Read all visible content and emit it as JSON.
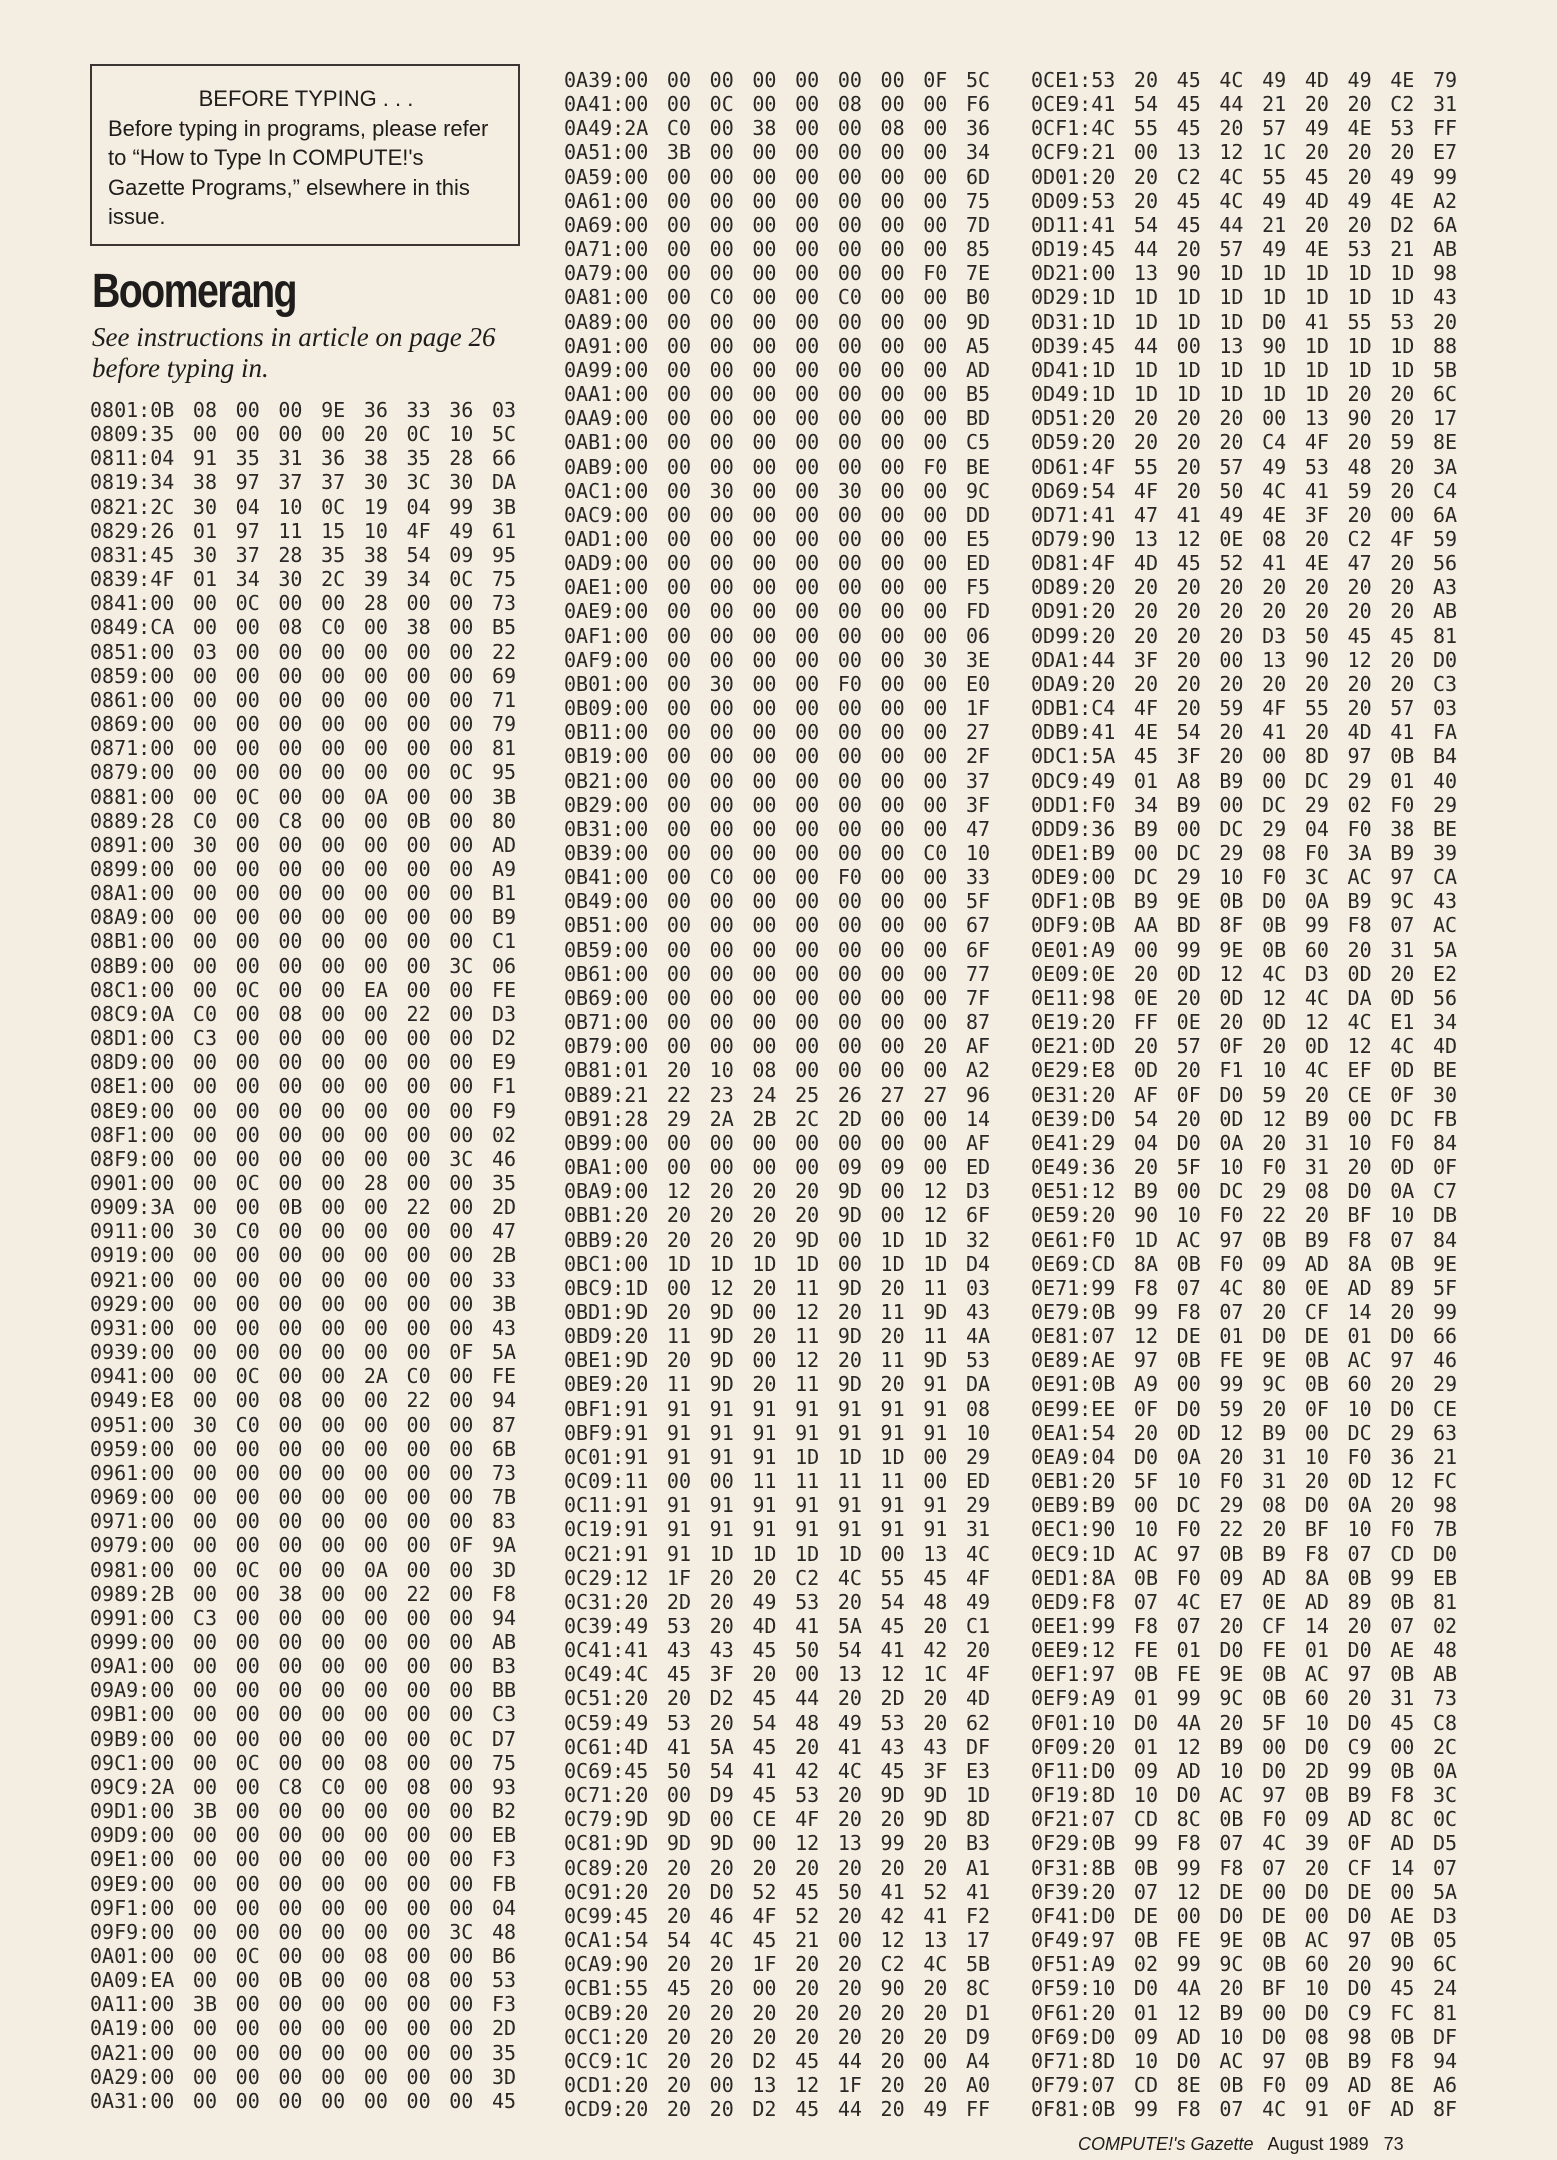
{
  "notice": {
    "heading": "BEFORE TYPING . . .",
    "body": "Before typing in programs, please refer to “How to Type In COMPUTE!'s Gazette Programs,” elsewhere in this issue."
  },
  "article": {
    "title": "Boomerang",
    "subtitle": "See instructions in article on page 26 before typing in."
  },
  "listing": {
    "col1": [
      "0801:0B 08 00 00 9E 36 33 36 03",
      "0809:35 00 00 00 00 20 0C 10 5C",
      "0811:04 91 35 31 36 38 35 28 66",
      "0819:34 38 97 37 37 30 3C 30 DA",
      "0821:2C 30 04 10 0C 19 04 99 3B",
      "0829:26 01 97 11 15 10 4F 49 61",
      "0831:45 30 37 28 35 38 54 09 95",
      "0839:4F 01 34 30 2C 39 34 0C 75",
      "0841:00 00 0C 00 00 28 00 00 73",
      "0849:CA 00 00 08 C0 00 38 00 B5",
      "0851:00 03 00 00 00 00 00 00 22",
      "0859:00 00 00 00 00 00 00 00 69",
      "0861:00 00 00 00 00 00 00 00 71",
      "0869:00 00 00 00 00 00 00 00 79",
      "0871:00 00 00 00 00 00 00 00 81",
      "0879:00 00 00 00 00 00 00 0C 95",
      "0881:00 00 0C 00 00 0A 00 00 3B",
      "0889:28 C0 00 C8 00 00 0B 00 80",
      "0891:00 30 00 00 00 00 00 00 AD",
      "0899:00 00 00 00 00 00 00 00 A9",
      "08A1:00 00 00 00 00 00 00 00 B1",
      "08A9:00 00 00 00 00 00 00 00 B9",
      "08B1:00 00 00 00 00 00 00 00 C1",
      "08B9:00 00 00 00 00 00 00 3C 06",
      "08C1:00 00 0C 00 00 EA 00 00 FE",
      "08C9:0A C0 00 08 00 00 22 00 D3",
      "08D1:00 C3 00 00 00 00 00 00 D2",
      "08D9:00 00 00 00 00 00 00 00 E9",
      "08E1:00 00 00 00 00 00 00 00 F1",
      "08E9:00 00 00 00 00 00 00 00 F9",
      "08F1:00 00 00 00 00 00 00 00 02",
      "08F9:00 00 00 00 00 00 00 3C 46",
      "0901:00 00 0C 00 00 28 00 00 35",
      "0909:3A 00 00 0B 00 00 22 00 2D",
      "0911:00 30 C0 00 00 00 00 00 47",
      "0919:00 00 00 00 00 00 00 00 2B",
      "0921:00 00 00 00 00 00 00 00 33",
      "0929:00 00 00 00 00 00 00 00 3B",
      "0931:00 00 00 00 00 00 00 00 43",
      "0939:00 00 00 00 00 00 00 0F 5A",
      "0941:00 00 0C 00 00 2A C0 00 FE",
      "0949:E8 00 00 08 00 00 22 00 94",
      "0951:00 30 C0 00 00 00 00 00 87",
      "0959:00 00 00 00 00 00 00 00 6B",
      "0961:00 00 00 00 00 00 00 00 73",
      "0969:00 00 00 00 00 00 00 00 7B",
      "0971:00 00 00 00 00 00 00 00 83",
      "0979:00 00 00 00 00 00 00 0F 9A",
      "0981:00 00 0C 00 00 0A 00 00 3D",
      "0989:2B 00 00 38 00 00 22 00 F8",
      "0991:00 C3 00 00 00 00 00 00 94",
      "0999:00 00 00 00 00 00 00 00 AB",
      "09A1:00 00 00 00 00 00 00 00 B3",
      "09A9:00 00 00 00 00 00 00 00 BB",
      "09B1:00 00 00 00 00 00 00 00 C3",
      "09B9:00 00 00 00 00 00 00 0C D7",
      "09C1:00 00 0C 00 00 08 00 00 75",
      "09C9:2A 00 00 C8 C0 00 08 00 93",
      "09D1:00 3B 00 00 00 00 00 00 B2",
      "09D9:00 00 00 00 00 00 00 00 EB",
      "09E1:00 00 00 00 00 00 00 00 F3",
      "09E9:00 00 00 00 00 00 00 00 FB",
      "09F1:00 00 00 00 00 00 00 00 04",
      "09F9:00 00 00 00 00 00 00 3C 48",
      "0A01:00 00 0C 00 00 08 00 00 B6",
      "0A09:EA 00 00 0B 00 00 08 00 53",
      "0A11:00 3B 00 00 00 00 00 00 F3",
      "0A19:00 00 00 00 00 00 00 00 2D",
      "0A21:00 00 00 00 00 00 00 00 35",
      "0A29:00 00 00 00 00 00 00 00 3D",
      "0A31:00 00 00 00 00 00 00 00 45"
    ],
    "col2": [
      "0A39:00 00 00 00 00 00 00 0F 5C",
      "0A41:00 00 0C 00 00 08 00 00 F6",
      "0A49:2A C0 00 38 00 00 08 00 36",
      "0A51:00 3B 00 00 00 00 00 00 34",
      "0A59:00 00 00 00 00 00 00 00 6D",
      "0A61:00 00 00 00 00 00 00 00 75",
      "0A69:00 00 00 00 00 00 00 00 7D",
      "0A71:00 00 00 00 00 00 00 00 85",
      "0A79:00 00 00 00 00 00 00 F0 7E",
      "0A81:00 00 C0 00 00 C0 00 00 B0",
      "0A89:00 00 00 00 00 00 00 00 9D",
      "0A91:00 00 00 00 00 00 00 00 A5",
      "0A99:00 00 00 00 00 00 00 00 AD",
      "0AA1:00 00 00 00 00 00 00 00 B5",
      "0AA9:00 00 00 00 00 00 00 00 BD",
      "0AB1:00 00 00 00 00 00 00 00 C5",
      "0AB9:00 00 00 00 00 00 00 F0 BE",
      "0AC1:00 00 30 00 00 30 00 00 9C",
      "0AC9:00 00 00 00 00 00 00 00 DD",
      "0AD1:00 00 00 00 00 00 00 00 E5",
      "0AD9:00 00 00 00 00 00 00 00 ED",
      "0AE1:00 00 00 00 00 00 00 00 F5",
      "0AE9:00 00 00 00 00 00 00 00 FD",
      "0AF1:00 00 00 00 00 00 00 00 06",
      "0AF9:00 00 00 00 00 00 00 30 3E",
      "0B01:00 00 30 00 00 F0 00 00 E0",
      "0B09:00 00 00 00 00 00 00 00 1F",
      "0B11:00 00 00 00 00 00 00 00 27",
      "0B19:00 00 00 00 00 00 00 00 2F",
      "0B21:00 00 00 00 00 00 00 00 37",
      "0B29:00 00 00 00 00 00 00 00 3F",
      "0B31:00 00 00 00 00 00 00 00 47",
      "0B39:00 00 00 00 00 00 00 C0 10",
      "0B41:00 00 C0 00 00 F0 00 00 33",
      "0B49:00 00 00 00 00 00 00 00 5F",
      "0B51:00 00 00 00 00 00 00 00 67",
      "0B59:00 00 00 00 00 00 00 00 6F",
      "0B61:00 00 00 00 00 00 00 00 77",
      "0B69:00 00 00 00 00 00 00 00 7F",
      "0B71:00 00 00 00 00 00 00 00 87",
      "0B79:00 00 00 00 00 00 00 20 AF",
      "0B81:01 20 10 08 00 00 00 00 A2",
      "0B89:21 22 23 24 25 26 27 27 96",
      "0B91:28 29 2A 2B 2C 2D 00 00 14",
      "0B99:00 00 00 00 00 00 00 00 AF",
      "0BA1:00 00 00 00 00 09 09 00 ED",
      "0BA9:00 12 20 20 20 9D 00 12 D3",
      "0BB1:20 20 20 20 20 9D 00 12 6F",
      "0BB9:20 20 20 20 9D 00 1D 1D 32",
      "0BC1:00 1D 1D 1D 1D 00 1D 1D D4",
      "0BC9:1D 00 12 20 11 9D 20 11 03",
      "0BD1:9D 20 9D 00 12 20 11 9D 43",
      "0BD9:20 11 9D 20 11 9D 20 11 4A",
      "0BE1:9D 20 9D 00 12 20 11 9D 53",
      "0BE9:20 11 9D 20 11 9D 20 91 DA",
      "0BF1:91 91 91 91 91 91 91 91 08",
      "0BF9:91 91 91 91 91 91 91 91 10",
      "0C01:91 91 91 91 1D 1D 1D 00 29",
      "0C09:11 00 00 11 11 11 11 00 ED",
      "0C11:91 91 91 91 91 91 91 91 29",
      "0C19:91 91 91 91 91 91 91 91 31",
      "0C21:91 91 1D 1D 1D 1D 00 13 4C",
      "0C29:12 1F 20 20 C2 4C 55 45 4F",
      "0C31:20 2D 20 49 53 20 54 48 49",
      "0C39:49 53 20 4D 41 5A 45 20 C1",
      "0C41:41 43 43 45 50 54 41 42 20",
      "0C49:4C 45 3F 20 00 13 12 1C 4F",
      "0C51:20 20 D2 45 44 20 2D 20 4D",
      "0C59:49 53 20 54 48 49 53 20 62",
      "0C61:4D 41 5A 45 20 41 43 43 DF",
      "0C69:45 50 54 41 42 4C 45 3F E3",
      "0C71:20 00 D9 45 53 20 9D 9D 1D",
      "0C79:9D 9D 00 CE 4F 20 20 9D 8D",
      "0C81:9D 9D 9D 00 12 13 99 20 B3",
      "0C89:20 20 20 20 20 20 20 20 A1",
      "0C91:20 20 D0 52 45 50 41 52 41",
      "0C99:45 20 46 4F 52 20 42 41 F2",
      "0CA1:54 54 4C 45 21 00 12 13 17",
      "0CA9:90 20 20 1F 20 20 C2 4C 5B",
      "0CB1:55 45 20 00 20 20 90 20 8C",
      "0CB9:20 20 20 20 20 20 20 20 D1",
      "0CC1:20 20 20 20 20 20 20 20 D9",
      "0CC9:1C 20 20 D2 45 44 20 00 A4",
      "0CD1:20 20 00 13 12 1F 20 20 A0",
      "0CD9:20 20 20 D2 45 44 20 49 FF"
    ],
    "col3": [
      "0CE1:53 20 45 4C 49 4D 49 4E 79",
      "0CE9:41 54 45 44 21 20 20 C2 31",
      "0CF1:4C 55 45 20 57 49 4E 53 FF",
      "0CF9:21 00 13 12 1C 20 20 20 E7",
      "0D01:20 20 C2 4C 55 45 20 49 99",
      "0D09:53 20 45 4C 49 4D 49 4E A2",
      "0D11:41 54 45 44 21 20 20 D2 6A",
      "0D19:45 44 20 57 49 4E 53 21 AB",
      "0D21:00 13 90 1D 1D 1D 1D 1D 98",
      "0D29:1D 1D 1D 1D 1D 1D 1D 1D 43",
      "0D31:1D 1D 1D 1D D0 41 55 53 20",
      "0D39:45 44 00 13 90 1D 1D 1D 88",
      "0D41:1D 1D 1D 1D 1D 1D 1D 1D 5B",
      "0D49:1D 1D 1D 1D 1D 1D 20 20 6C",
      "0D51:20 20 20 20 00 13 90 20 17",
      "0D59:20 20 20 20 C4 4F 20 59 8E",
      "0D61:4F 55 20 57 49 53 48 20 3A",
      "0D69:54 4F 20 50 4C 41 59 20 C4",
      "0D71:41 47 41 49 4E 3F 20 00 6A",
      "0D79:90 13 12 0E 08 20 C2 4F 59",
      "0D81:4F 4D 45 52 41 4E 47 20 56",
      "0D89:20 20 20 20 20 20 20 20 A3",
      "0D91:20 20 20 20 20 20 20 20 AB",
      "0D99:20 20 20 20 D3 50 45 45 81",
      "0DA1:44 3F 20 00 13 90 12 20 D0",
      "0DA9:20 20 20 20 20 20 20 20 C3",
      "0DB1:C4 4F 20 59 4F 55 20 57 03",
      "0DB9:41 4E 54 20 41 20 4D 41 FA",
      "0DC1:5A 45 3F 20 00 8D 97 0B B4",
      "0DC9:49 01 A8 B9 00 DC 29 01 40",
      "0DD1:F0 34 B9 00 DC 29 02 F0 29",
      "0DD9:36 B9 00 DC 29 04 F0 38 BE",
      "0DE1:B9 00 DC 29 08 F0 3A B9 39",
      "0DE9:00 DC 29 10 F0 3C AC 97 CA",
      "0DF1:0B B9 9E 0B D0 0A B9 9C 43",
      "0DF9:0B AA BD 8F 0B 99 F8 07 AC",
      "0E01:A9 00 99 9E 0B 60 20 31 5A",
      "0E09:0E 20 0D 12 4C D3 0D 20 E2",
      "0E11:98 0E 20 0D 12 4C DA 0D 56",
      "0E19:20 FF 0E 20 0D 12 4C E1 34",
      "0E21:0D 20 57 0F 20 0D 12 4C 4D",
      "0E29:E8 0D 20 F1 10 4C EF 0D BE",
      "0E31:20 AF 0F D0 59 20 CE 0F 30",
      "0E39:D0 54 20 0D 12 B9 00 DC FB",
      "0E41:29 04 D0 0A 20 31 10 F0 84",
      "0E49:36 20 5F 10 F0 31 20 0D 0F",
      "0E51:12 B9 00 DC 29 08 D0 0A C7",
      "0E59:20 90 10 F0 22 20 BF 10 DB",
      "0E61:F0 1D AC 97 0B B9 F8 07 84",
      "0E69:CD 8A 0B F0 09 AD 8A 0B 9E",
      "0E71:99 F8 07 4C 80 0E AD 89 5F",
      "0E79:0B 99 F8 07 20 CF 14 20 99",
      "0E81:07 12 DE 01 D0 DE 01 D0 66",
      "0E89:AE 97 0B FE 9E 0B AC 97 46",
      "0E91:0B A9 00 99 9C 0B 60 20 29",
      "0E99:EE 0F D0 59 20 0F 10 D0 CE",
      "0EA1:54 20 0D 12 B9 00 DC 29 63",
      "0EA9:04 D0 0A 20 31 10 F0 36 21",
      "0EB1:20 5F 10 F0 31 20 0D 12 FC",
      "0EB9:B9 00 DC 29 08 D0 0A 20 98",
      "0EC1:90 10 F0 22 20 BF 10 F0 7B",
      "0EC9:1D AC 97 0B B9 F8 07 CD D0",
      "0ED1:8A 0B F0 09 AD 8A 0B 99 EB",
      "0ED9:F8 07 4C E7 0E AD 89 0B 81",
      "0EE1:99 F8 07 20 CF 14 20 07 02",
      "0EE9:12 FE 01 D0 FE 01 D0 AE 48",
      "0EF1:97 0B FE 9E 0B AC 97 0B AB",
      "0EF9:A9 01 99 9C 0B 60 20 31 73",
      "0F01:10 D0 4A 20 5F 10 D0 45 C8",
      "0F09:20 01 12 B9 00 D0 C9 00 2C",
      "0F11:D0 09 AD 10 D0 2D 99 0B 0A",
      "0F19:8D 10 D0 AC 97 0B B9 F8 3C",
      "0F21:07 CD 8C 0B F0 09 AD 8C 0C",
      "0F29:0B 99 F8 07 4C 39 0F AD D5",
      "0F31:8B 0B 99 F8 07 20 CF 14 07",
      "0F39:20 07 12 DE 00 D0 DE 00 5A",
      "0F41:D0 DE 00 D0 DE 00 D0 AE D3",
      "0F49:97 0B FE 9E 0B AC 97 0B 05",
      "0F51:A9 02 99 9C 0B 60 20 90 6C",
      "0F59:10 D0 4A 20 BF 10 D0 45 24",
      "0F61:20 01 12 B9 00 D0 C9 FC 81",
      "0F69:D0 09 AD 10 D0 08 98 0B DF",
      "0F71:8D 10 D0 AC 97 0B B9 F8 94",
      "0F79:07 CD 8E 0B F0 09 AD 8E A6",
      "0F81:0B 99 F8 07 4C 91 0F AD 8F"
    ]
  },
  "footer": {
    "magazine": "COMPUTE!'s Gazette",
    "issue": "August 1989",
    "page": "73"
  }
}
